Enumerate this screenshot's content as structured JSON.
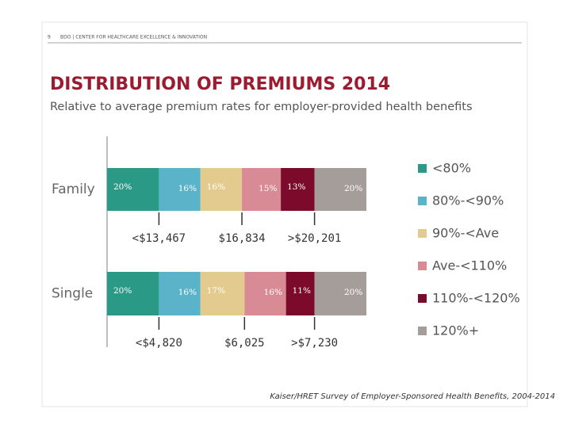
{
  "header": {
    "page_number": "9",
    "text": "BDO | CENTER FOR HEALTHCARE EXCELLENCE & INNOVATION"
  },
  "chart_data": {
    "type": "stacked-bar",
    "orientation": "horizontal",
    "title": "DISTRIBUTION OF PREMIUMS 2014",
    "subtitle": "Relative to average premium rates for employer-provided health benefits",
    "categories": [
      "Family",
      "Single"
    ],
    "xlim": [
      0,
      100
    ],
    "series": [
      {
        "name": "<80%",
        "color": "#2a9a87",
        "values": [
          20,
          20
        ],
        "value_labels": [
          "20%",
          "20%"
        ]
      },
      {
        "name": "80%-<90%",
        "color": "#5ab3c8",
        "values": [
          16,
          16
        ],
        "value_labels": [
          "16%",
          "16%"
        ]
      },
      {
        "name": "90%-<Ave",
        "color": "#e3cb8f",
        "values": [
          16,
          17
        ],
        "value_labels": [
          "16%",
          "17%"
        ]
      },
      {
        "name": "Ave-<110%",
        "color": "#d98b95",
        "values": [
          15,
          16
        ],
        "value_labels": [
          "15%",
          "16%"
        ]
      },
      {
        "name": "110%-<120%",
        "color": "#7b0a2b",
        "values": [
          13,
          11
        ],
        "value_labels": [
          "13%",
          "11%"
        ]
      },
      {
        "name": "120%+",
        "color": "#a59d99",
        "values": [
          20,
          20
        ],
        "value_labels": [
          "20%",
          "20%"
        ]
      }
    ],
    "annotations": [
      [
        "<$13,467",
        "$16,834",
        ">$20,201"
      ],
      [
        "<$4,820",
        "$6,025",
        ">$7,230"
      ]
    ],
    "source": "Kaiser/HRET Survey of Employer-Sponsored Health Benefits, 2004-2014"
  }
}
